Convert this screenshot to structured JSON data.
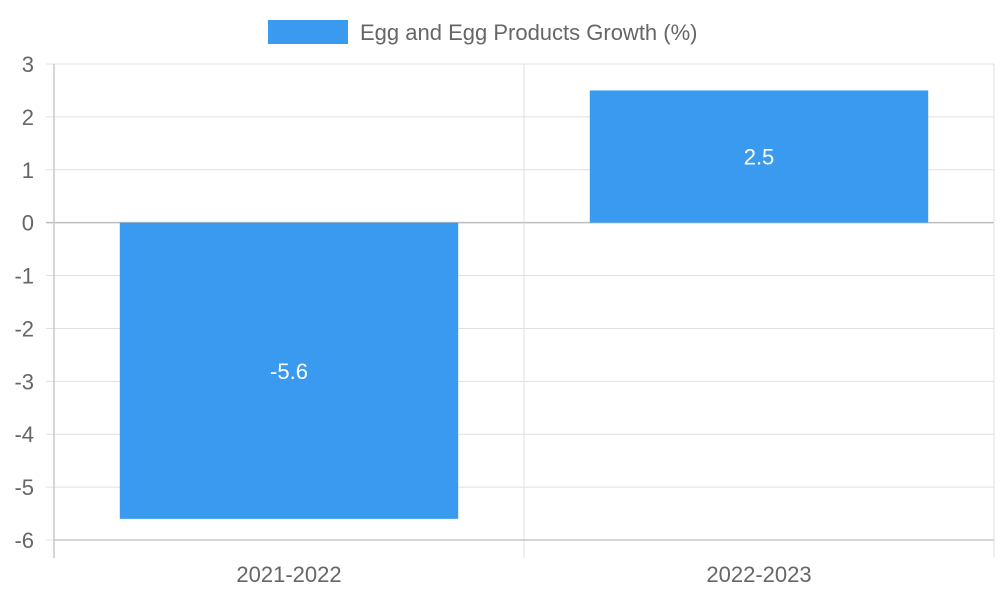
{
  "legend": {
    "label": "Egg and Egg Products Growth (%)"
  },
  "colors": {
    "bar": "#3a9af0",
    "grid": "#e0e0e0",
    "axis": "#c8c8c8",
    "text": "#666666",
    "data_label": "#ffffff"
  },
  "chart_data": {
    "type": "bar",
    "categories": [
      "2021-2022",
      "2022-2023"
    ],
    "series": [
      {
        "name": "Egg and Egg Products Growth (%)",
        "values": [
          -5.6,
          2.5
        ]
      }
    ],
    "ylim": [
      -6,
      3
    ],
    "yticks": [
      3,
      2,
      1,
      0,
      -1,
      -2,
      -3,
      -4,
      -5,
      -6
    ],
    "grid": true,
    "legend_position": "top-center"
  }
}
